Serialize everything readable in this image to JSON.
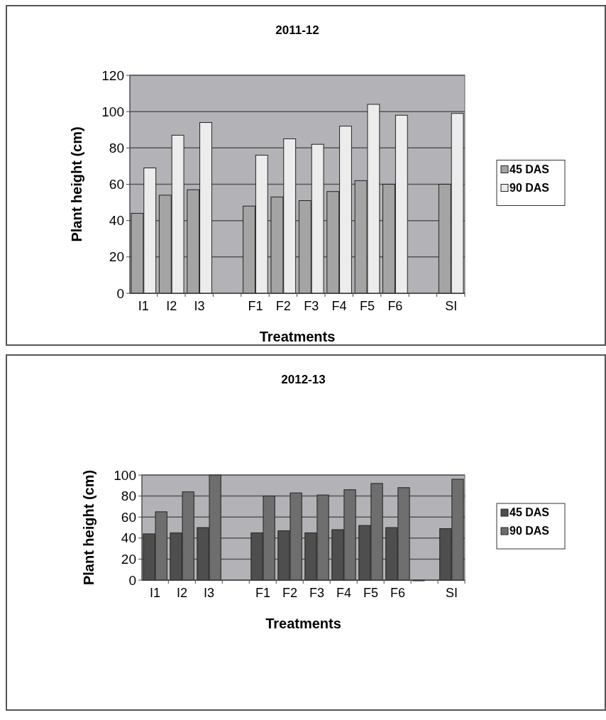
{
  "chart_data": [
    {
      "type": "bar",
      "title": "2011-12",
      "xlabel": "Treatments",
      "ylabel": "Plant height (cm)",
      "categories": [
        "I1",
        "I2",
        "I3",
        null,
        "F1",
        "F2",
        "F3",
        "F4",
        "F5",
        "F6",
        null,
        "SI"
      ],
      "series": [
        {
          "name": "45 DAS",
          "color": "#a4a4a4",
          "values": [
            44,
            54,
            57,
            null,
            48,
            53,
            51,
            56,
            62,
            60,
            null,
            60
          ]
        },
        {
          "name": "90 DAS",
          "color": "#ececec",
          "values": [
            69,
            87,
            94,
            null,
            76,
            85,
            82,
            92,
            104,
            98,
            null,
            99
          ]
        }
      ],
      "ylim": [
        0,
        120
      ],
      "yticks": [
        0,
        20,
        40,
        60,
        80,
        100,
        120
      ],
      "grid": "y",
      "legend": "right"
    },
    {
      "type": "bar",
      "title": "2012-13",
      "xlabel": "Treatments",
      "ylabel": "Plant height (cm)",
      "categories": [
        "I1",
        "I2",
        "I3",
        null,
        "F1",
        "F2",
        "F3",
        "F4",
        "F5",
        "F6",
        null,
        "SI"
      ],
      "series": [
        {
          "name": "45 DAS",
          "color": "#4e4e4e",
          "values": [
            44,
            45,
            50,
            null,
            45,
            47,
            45,
            48,
            52,
            50,
            0,
            49
          ]
        },
        {
          "name": "90 DAS",
          "color": "#6e6e6e",
          "values": [
            65,
            84,
            100,
            null,
            80,
            83,
            81,
            86,
            92,
            88,
            null,
            96
          ]
        }
      ],
      "ylim": [
        0,
        100
      ],
      "yticks": [
        0,
        20,
        40,
        60,
        80,
        100
      ],
      "grid": "y",
      "legend": "right"
    }
  ]
}
